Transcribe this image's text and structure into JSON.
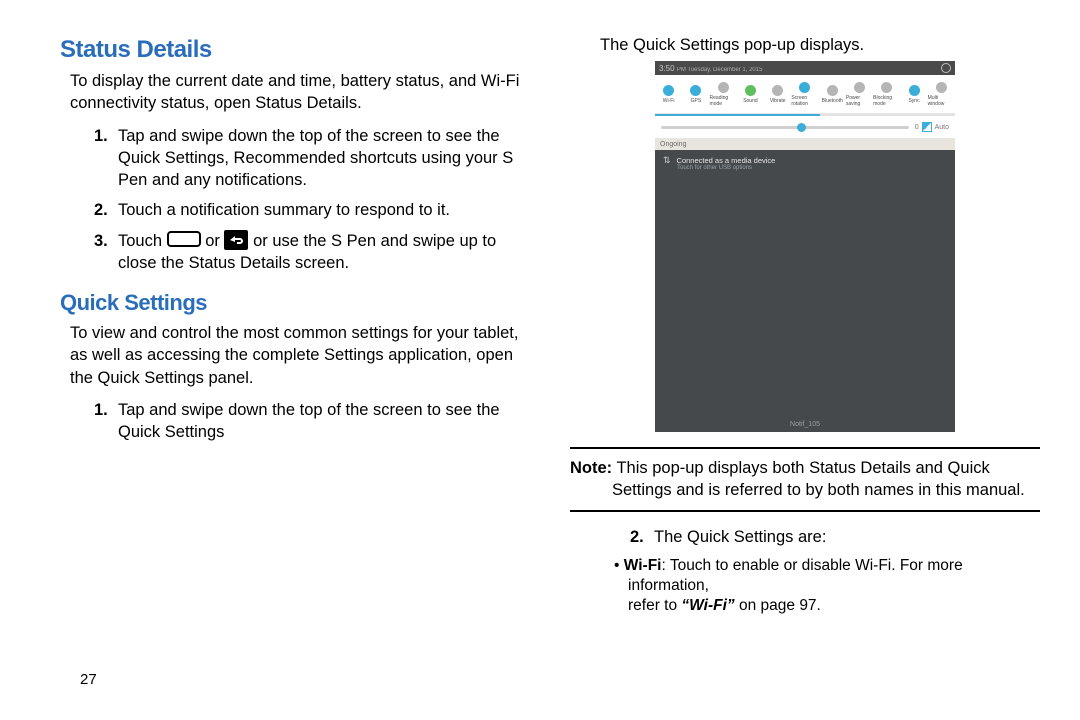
{
  "colors": {
    "heading_blue": "#2a6ebb",
    "body_text": "#000000",
    "qs_active": "#3aaed8",
    "qs_inactive": "#909090",
    "shot_notif_bg": "#45494c"
  },
  "typography": {
    "heading_status_pt": 24,
    "heading_quick_pt": 22,
    "body_pt": 16.5,
    "bullet_pt": 15.5
  },
  "left": {
    "heading_status": "Status Details",
    "status_intro": "To display the current date and time, battery status, and Wi-Fi connectivity status, open Status Details.",
    "status_steps": [
      "Tap and swipe down the top of the screen to see the Quick Settings, Recommended shortcuts using your S Pen and any notifications.",
      "Touch a notification summary to respond to it.",
      {
        "pre": "Touch ",
        "mid": " or ",
        "post": " or use the S Pen and swipe up to close the Status Details screen."
      }
    ],
    "heading_quick": "Quick Settings",
    "quick_intro": "To view and control the most common settings for your tablet, as well as accessing the complete Settings application, open the Quick Settings panel.",
    "quick_steps": [
      "Tap and swipe down the top of the screen to see the Quick Settings"
    ],
    "page_number": "27"
  },
  "right": {
    "caption": "The Quick Settings pop-up displays.",
    "note_label": "Note:",
    "note_line1": " This pop-up displays both Status Details and Quick",
    "note_line2": "Settings and is referred to by both names in this manual.",
    "list2_lead_num": "2.",
    "list2_lead": "The Quick Settings are:",
    "wifi_bullet_bold": "Wi-Fi",
    "wifi_bullet_rest1": ": Touch to enable or disable Wi-Fi. For more information,",
    "wifi_bullet_rest2_pre": "refer to ",
    "wifi_bullet_italic": "“Wi-Fi”",
    "wifi_bullet_rest2_post": " on page 97."
  },
  "screenshot": {
    "time": "3:50",
    "date_small": "PM  Tuesday, December 1, 2015",
    "qs_items": [
      {
        "label": "Wi-Fi",
        "active": true
      },
      {
        "label": "GPS",
        "active": true
      },
      {
        "label": "Reading mode",
        "active": false
      },
      {
        "label": "Sound",
        "active": true,
        "green": true
      },
      {
        "label": "Vibrate",
        "active": false,
        "green": true
      },
      {
        "label": "Screen rotation",
        "active": true
      },
      {
        "label": "Bluetooth",
        "active": false
      },
      {
        "label": "Power saving",
        "active": false,
        "green": true
      },
      {
        "label": "Blocking mode",
        "active": false
      },
      {
        "label": "Sync",
        "active": true
      },
      {
        "label": "Multi window",
        "active": false
      }
    ],
    "slider_auto_label": "Auto",
    "section_label": "Ongoing",
    "notif_title": "Connected as a media device",
    "notif_sub": "Touch for other USB options",
    "footer": "Notif_105"
  }
}
